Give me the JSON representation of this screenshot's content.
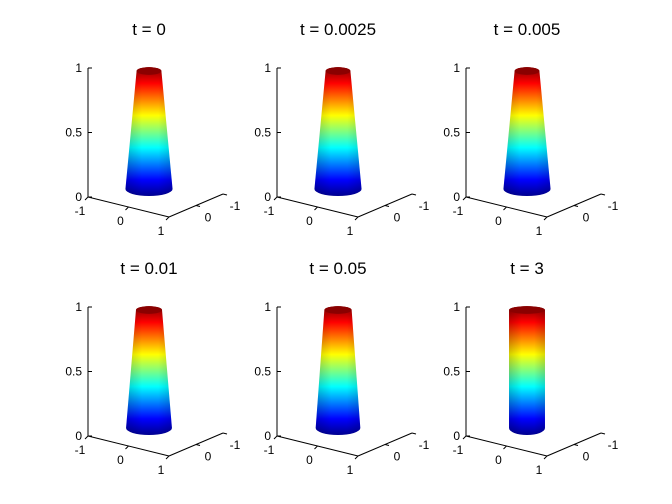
{
  "chart_data": [
    {
      "type": "surface",
      "title": "t = 0",
      "z_ticks": [
        "0",
        "0.5",
        "1"
      ],
      "x_ticks": [
        "-1",
        "0",
        "1"
      ],
      "y_ticks": [
        "0",
        "-1"
      ],
      "zlim": [
        0,
        1
      ],
      "xlim": [
        -1,
        1
      ],
      "ylim": [
        -1,
        1
      ],
      "radius_bottom": 0.38,
      "radius_top": 0.2,
      "colormap": "jet"
    },
    {
      "type": "surface",
      "title": "t = 0.0025",
      "z_ticks": [
        "0",
        "0.5",
        "1"
      ],
      "x_ticks": [
        "-1",
        "0",
        "1"
      ],
      "y_ticks": [
        "0",
        "-1"
      ],
      "zlim": [
        0,
        1
      ],
      "xlim": [
        -1,
        1
      ],
      "ylim": [
        -1,
        1
      ],
      "radius_bottom": 0.38,
      "radius_top": 0.2,
      "colormap": "jet"
    },
    {
      "type": "surface",
      "title": "t = 0.005",
      "z_ticks": [
        "0",
        "0.5",
        "1"
      ],
      "x_ticks": [
        "-1",
        "0",
        "1"
      ],
      "y_ticks": [
        "0",
        "-1"
      ],
      "zlim": [
        0,
        1
      ],
      "xlim": [
        -1,
        1
      ],
      "ylim": [
        -1,
        1
      ],
      "radius_bottom": 0.38,
      "radius_top": 0.2,
      "colormap": "jet"
    },
    {
      "type": "surface",
      "title": "t = 0.01",
      "z_ticks": [
        "0",
        "0.5",
        "1"
      ],
      "x_ticks": [
        "-1",
        "0",
        "1"
      ],
      "y_ticks": [
        "0",
        "-1"
      ],
      "zlim": [
        0,
        1
      ],
      "xlim": [
        -1,
        1
      ],
      "ylim": [
        -1,
        1
      ],
      "radius_bottom": 0.37,
      "radius_top": 0.21,
      "colormap": "jet"
    },
    {
      "type": "surface",
      "title": "t = 0.05",
      "z_ticks": [
        "0",
        "0.5",
        "1"
      ],
      "x_ticks": [
        "-1",
        "0",
        "1"
      ],
      "y_ticks": [
        "0",
        "-1"
      ],
      "zlim": [
        0,
        1
      ],
      "xlim": [
        -1,
        1
      ],
      "ylim": [
        -1,
        1
      ],
      "radius_bottom": 0.36,
      "radius_top": 0.22,
      "colormap": "jet"
    },
    {
      "type": "surface",
      "title": "t = 3",
      "z_ticks": [
        "0",
        "0.5",
        "1"
      ],
      "x_ticks": [
        "-1",
        "0",
        "1"
      ],
      "y_ticks": [
        "0",
        "-1"
      ],
      "zlim": [
        0,
        1
      ],
      "xlim": [
        -1,
        1
      ],
      "ylim": [
        -1,
        1
      ],
      "radius_bottom": 0.29,
      "radius_top": 0.29,
      "colormap": "jet"
    }
  ]
}
